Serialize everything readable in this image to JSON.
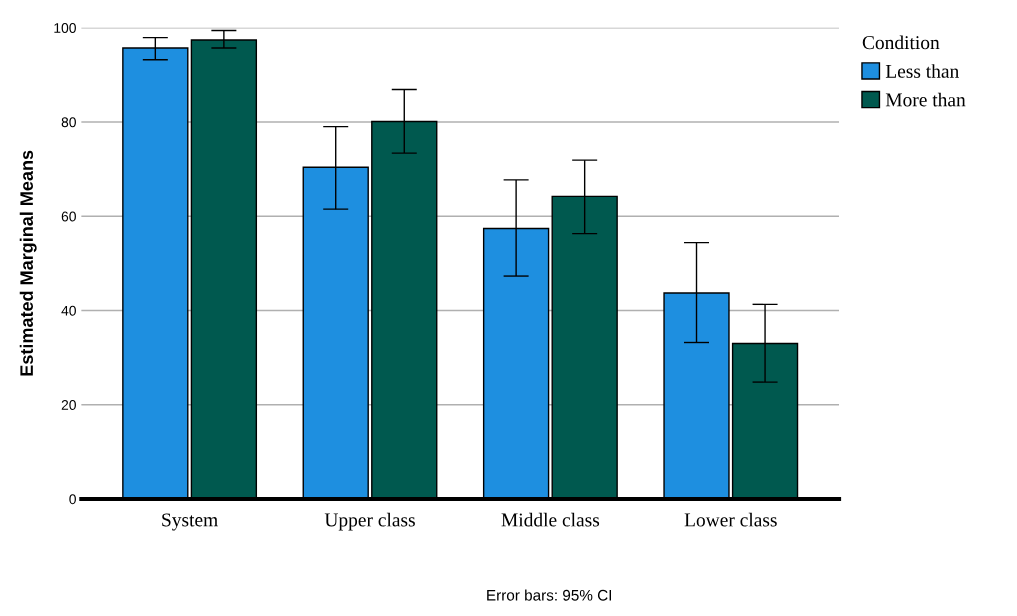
{
  "chart_data": {
    "type": "bar",
    "ylabel": "Estimated Marginal Means",
    "legend_title": "Condition",
    "legend": "top right",
    "grid": "y",
    "categories": [
      "System",
      "Upper class",
      "Middle class",
      "Lower class"
    ],
    "series": [
      {
        "name": "Less than",
        "color": "#1e8fe0",
        "values": [
          95.7,
          70.4,
          57.4,
          43.7
        ],
        "errors": [
          [
            93.2,
            97.9
          ],
          [
            61.5,
            79.0
          ],
          [
            47.3,
            67.7
          ],
          [
            33.2,
            54.4
          ]
        ]
      },
      {
        "name": "More than",
        "color": "#00594f",
        "values": [
          97.4,
          80.1,
          64.2,
          33.0
        ],
        "errors": [
          [
            95.7,
            99.4
          ],
          [
            73.4,
            86.9
          ],
          [
            56.3,
            71.9
          ],
          [
            24.8,
            41.3
          ]
        ]
      }
    ],
    "ylim": [
      0,
      100
    ],
    "yticks": [
      0,
      20,
      40,
      60,
      80,
      100
    ],
    "annotations": [
      "Error bars: 95% CI"
    ]
  }
}
